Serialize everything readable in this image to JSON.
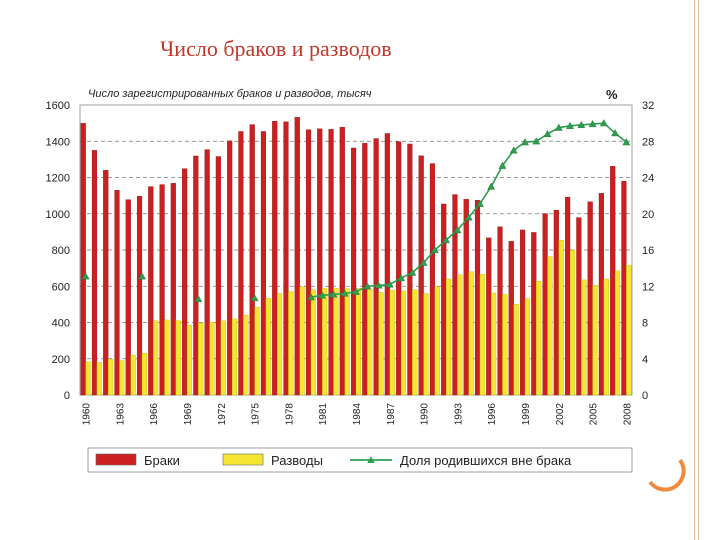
{
  "slide": {
    "title": "Число браков и разводов",
    "accent_color": "#e8b89a",
    "decor_color": "#f08a3c"
  },
  "chart_data": {
    "type": "bar",
    "title": "Число зарегистрированных браков и разводов, тысяч",
    "right_axis_unit": "%",
    "xlabel": "",
    "ylabel": "",
    "ylim": [
      0,
      1600
    ],
    "yticks": [
      0,
      200,
      400,
      600,
      800,
      1000,
      1200,
      1400,
      1600
    ],
    "y2lim": [
      0,
      32
    ],
    "y2ticks": [
      0,
      4,
      8,
      12,
      16,
      20,
      24,
      28,
      32
    ],
    "grid": true,
    "legend_position": "bottom",
    "x_tick_labels": [
      "1960",
      "1963",
      "1966",
      "1969",
      "1972",
      "1975",
      "1978",
      "1981",
      "1984",
      "1987",
      "1990",
      "1993",
      "1996",
      "1999",
      "2002",
      "2005",
      "2008"
    ],
    "categories": [
      "1960",
      "1961",
      "1962",
      "1963",
      "1964",
      "1965",
      "1966",
      "1967",
      "1968",
      "1969",
      "1970",
      "1971",
      "1972",
      "1973",
      "1974",
      "1975",
      "1976",
      "1977",
      "1978",
      "1979",
      "1980",
      "1981",
      "1982",
      "1983",
      "1984",
      "1985",
      "1986",
      "1987",
      "1988",
      "1989",
      "1990",
      "1991",
      "1992",
      "1993",
      "1994",
      "1995",
      "1996",
      "1997",
      "1998",
      "1999",
      "2000",
      "2001",
      "2002",
      "2003",
      "2004",
      "2005",
      "2006",
      "2007",
      "2008"
    ],
    "series": [
      {
        "name": "Браки",
        "color": "#cc1f1f",
        "axis": "left",
        "values": [
          1499,
          1350,
          1240,
          1130,
          1078,
          1097,
          1150,
          1161,
          1168,
          1249,
          1319,
          1354,
          1316,
          1402,
          1454,
          1492,
          1454,
          1511,
          1508,
          1532,
          1464,
          1469,
          1466,
          1478,
          1363,
          1389,
          1415,
          1443,
          1398,
          1385,
          1320,
          1277,
          1054,
          1106,
          1080,
          1075,
          867,
          928,
          848,
          911,
          897,
          1001,
          1020,
          1092,
          979,
          1066,
          1113,
          1262,
          1180
        ]
      },
      {
        "name": "Разводы",
        "color": "#f5e634",
        "axis": "left",
        "values": [
          184,
          180,
          198,
          190,
          219,
          230,
          410,
          414,
          411,
          386,
          397,
          401,
          409,
          420,
          440,
          485,
          534,
          560,
          571,
          598,
          581,
          588,
          589,
          587,
          589,
          585,
          566,
          579,
          574,
          581,
          560,
          598,
          640,
          664,
          680,
          666,
          563,
          555,
          501,
          532,
          628,
          764,
          854,
          798,
          635,
          605,
          640,
          685,
          715
        ]
      },
      {
        "name": "Доля родившихся вне брака",
        "color": "#2e9e4f",
        "axis": "right",
        "type": "line",
        "points": [
          [
            1960,
            13.1
          ],
          [
            1965,
            13.1
          ],
          [
            1970,
            10.6
          ],
          [
            1975,
            10.7
          ],
          [
            1980,
            10.8
          ],
          [
            1981,
            11.0
          ],
          [
            1982,
            11.1
          ],
          [
            1983,
            11.2
          ],
          [
            1984,
            11.4
          ],
          [
            1985,
            12.0
          ],
          [
            1986,
            12.1
          ],
          [
            1987,
            12.2
          ],
          [
            1988,
            12.9
          ],
          [
            1989,
            13.5
          ],
          [
            1990,
            14.6
          ],
          [
            1991,
            16.0
          ],
          [
            1992,
            17.1
          ],
          [
            1993,
            18.2
          ],
          [
            1994,
            19.6
          ],
          [
            1995,
            21.1
          ],
          [
            1996,
            23.0
          ],
          [
            1997,
            25.3
          ],
          [
            1998,
            27.0
          ],
          [
            1999,
            27.9
          ],
          [
            2000,
            28.0
          ],
          [
            2001,
            28.8
          ],
          [
            2002,
            29.5
          ],
          [
            2003,
            29.7
          ],
          [
            2004,
            29.8
          ],
          [
            2005,
            29.9
          ],
          [
            2006,
            30.0
          ],
          [
            2007,
            28.9
          ],
          [
            2008,
            27.9
          ]
        ]
      }
    ]
  }
}
